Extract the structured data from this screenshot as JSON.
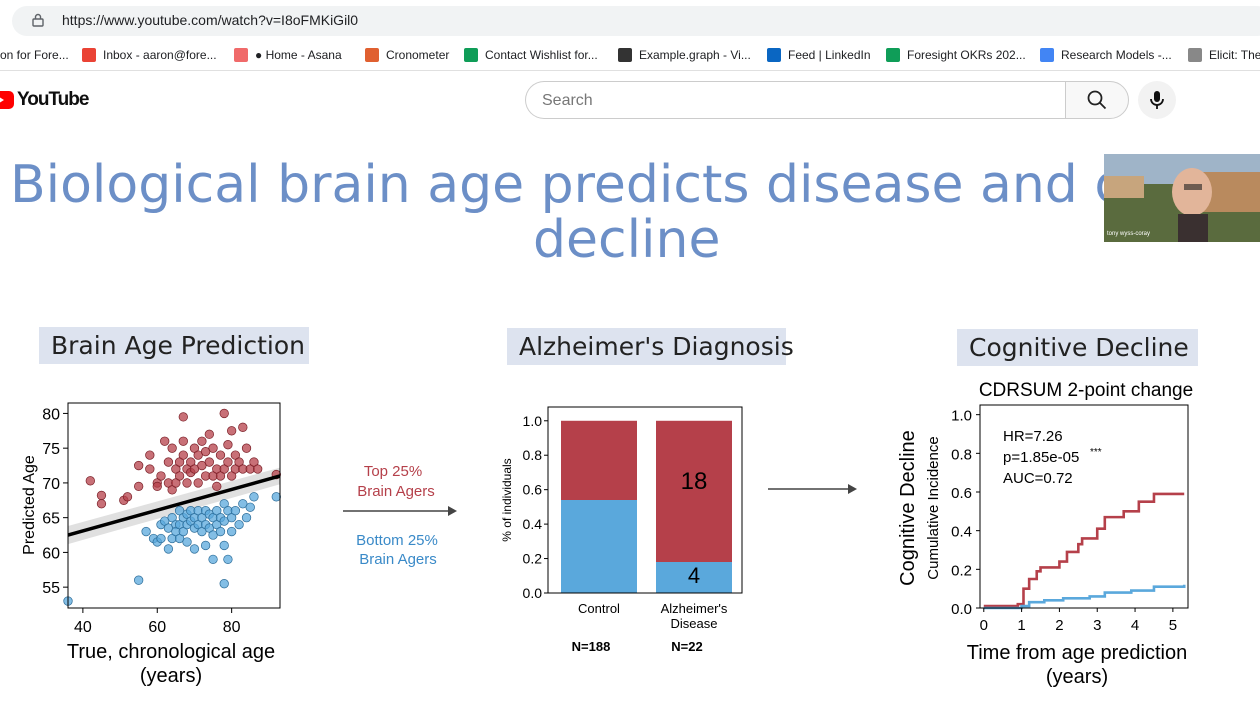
{
  "browser": {
    "url": "https://www.youtube.com/watch?v=I8oFMKiGil0",
    "bookmarks": [
      {
        "label": "on for Fore...",
        "color": "#5b8def"
      },
      {
        "label": "Inbox - aaron@fore...",
        "color": "#ea4335",
        "icon": "gmail-icon"
      },
      {
        "label": "● Home - Asana",
        "color": "#f06a6a",
        "icon": "asana-icon"
      },
      {
        "label": "Cronometer",
        "color": "#e06030",
        "icon": "cronometer-icon"
      },
      {
        "label": "Contact Wishlist for...",
        "color": "#0f9d58",
        "icon": "sheets-icon"
      },
      {
        "label": "Example.graph - Vi...",
        "color": "#333333",
        "icon": "graph-icon"
      },
      {
        "label": "Feed | LinkedIn",
        "color": "#0a66c2",
        "icon": "linkedin-icon"
      },
      {
        "label": "Foresight OKRs 202...",
        "color": "#0f9d58",
        "icon": "sheets-icon"
      },
      {
        "label": "Research Models -...",
        "color": "#4285f4",
        "icon": "docs-icon"
      },
      {
        "label": "Elicit: The",
        "color": "#888888",
        "icon": "elicit-icon"
      }
    ]
  },
  "youtube": {
    "brand": "YouTube",
    "search_placeholder": "Search"
  },
  "slide": {
    "title_line1": "Biological brain age predicts disease and cog",
    "title_line2": "decline",
    "webcam_name": "tony wyss-coray",
    "panel1": {
      "header": "Brain Age Prediction",
      "xlabel": "True, chronological age",
      "xlabel2": "(years)",
      "ylabel": "Predicted Age"
    },
    "middle": {
      "top_label1": "Top 25%",
      "top_label2": "Brain Agers",
      "bottom_label1": "Bottom 25%",
      "bottom_label2": "Brain Agers"
    },
    "panel2": {
      "header": "Alzheimer's Diagnosis",
      "ylabel": "% of individuals",
      "cat1": "Control",
      "cat2a": "Alzheimer's",
      "cat2b": "Disease",
      "n1": "N=188",
      "n2": "N=22",
      "val_red": "18",
      "val_blue": "4"
    },
    "panel3": {
      "header": "Cognitive Decline",
      "subtitle": "CDRSUM 2-point change",
      "ylabel_outer": "Cognitive Decline",
      "ylabel_inner": "Cumulative Incidence",
      "hr": "HR=7.26",
      "p": "p=1.85e-05",
      "stars": "***",
      "auc": "AUC=0.72",
      "xlabel": "Time from age prediction",
      "xlabel2": "(years)"
    }
  },
  "colors": {
    "red": "#b5404a",
    "blue": "#5aa8dc",
    "title": "#6c8fc7"
  },
  "chart_data": [
    {
      "type": "scatter",
      "title": "Brain Age Prediction",
      "xlabel": "True, chronological age (years)",
      "ylabel": "Predicted Age",
      "xticks": [
        40,
        60,
        80
      ],
      "yticks": [
        55,
        60,
        65,
        70,
        75,
        80
      ],
      "xlim": [
        36,
        93
      ],
      "ylim": [
        52,
        81.5
      ],
      "regression_line": {
        "x": [
          36,
          93
        ],
        "y": [
          62.5,
          71
        ]
      },
      "series": [
        {
          "name": "Top 25% Brain Agers",
          "color": "#b5404a",
          "points": [
            [
              42,
              70.3
            ],
            [
              45,
              68.2
            ],
            [
              45,
              67
            ],
            [
              51,
              67.5
            ],
            [
              52,
              68
            ],
            [
              55,
              69.5
            ],
            [
              55,
              72.5
            ],
            [
              58,
              72
            ],
            [
              58,
              74
            ],
            [
              60,
              70
            ],
            [
              60,
              69.5
            ],
            [
              61,
              71
            ],
            [
              62,
              76
            ],
            [
              63,
              73
            ],
            [
              63,
              70
            ],
            [
              64,
              75
            ],
            [
              64,
              69
            ],
            [
              65,
              72
            ],
            [
              65,
              70
            ],
            [
              66,
              73
            ],
            [
              66,
              71
            ],
            [
              67,
              79.5
            ],
            [
              67,
              76
            ],
            [
              67,
              74
            ],
            [
              68,
              72
            ],
            [
              68,
              70
            ],
            [
              69,
              73
            ],
            [
              69,
              71.5
            ],
            [
              70,
              75
            ],
            [
              70,
              72
            ],
            [
              71,
              74
            ],
            [
              71,
              70
            ],
            [
              72,
              76
            ],
            [
              72,
              72.5
            ],
            [
              73,
              74.5
            ],
            [
              73,
              71
            ],
            [
              74,
              77
            ],
            [
              74,
              73
            ],
            [
              75,
              71
            ],
            [
              75,
              75
            ],
            [
              76,
              72
            ],
            [
              76,
              69.5
            ],
            [
              77,
              74
            ],
            [
              77,
              71
            ],
            [
              78,
              80
            ],
            [
              78,
              72
            ],
            [
              79,
              75.5
            ],
            [
              79,
              73
            ],
            [
              80,
              77.5
            ],
            [
              80,
              71
            ],
            [
              81,
              74
            ],
            [
              81,
              72
            ],
            [
              82,
              73
            ],
            [
              83,
              78
            ],
            [
              83,
              72
            ],
            [
              84,
              75
            ],
            [
              85,
              72
            ],
            [
              86,
              73
            ],
            [
              87,
              72
            ],
            [
              92,
              71.2
            ]
          ]
        },
        {
          "name": "Bottom 25% Brain Agers",
          "color": "#5aa8dc",
          "points": [
            [
              36,
              53
            ],
            [
              55,
              56
            ],
            [
              57,
              63
            ],
            [
              59,
              62
            ],
            [
              60,
              61.5
            ],
            [
              61,
              64
            ],
            [
              61,
              62
            ],
            [
              62,
              64.5
            ],
            [
              63,
              63.5
            ],
            [
              63,
              60.5
            ],
            [
              64,
              65
            ],
            [
              64,
              62
            ],
            [
              65,
              64
            ],
            [
              65,
              63
            ],
            [
              66,
              66
            ],
            [
              66,
              64
            ],
            [
              66,
              62
            ],
            [
              67,
              65
            ],
            [
              67,
              63
            ],
            [
              68,
              65.5
            ],
            [
              68,
              64
            ],
            [
              68,
              61.5
            ],
            [
              69,
              66
            ],
            [
              69,
              64.5
            ],
            [
              70,
              65
            ],
            [
              70,
              63.5
            ],
            [
              70,
              60.5
            ],
            [
              71,
              66
            ],
            [
              71,
              64
            ],
            [
              72,
              65
            ],
            [
              72,
              63
            ],
            [
              73,
              66
            ],
            [
              73,
              64
            ],
            [
              73,
              61
            ],
            [
              74,
              65.5
            ],
            [
              74,
              63.5
            ],
            [
              75,
              65
            ],
            [
              75,
              62.5
            ],
            [
              75,
              59
            ],
            [
              76,
              66
            ],
            [
              76,
              64
            ],
            [
              77,
              65
            ],
            [
              77,
              63
            ],
            [
              78,
              67
            ],
            [
              78,
              64.5
            ],
            [
              78,
              61
            ],
            [
              78,
              55.5
            ],
            [
              79,
              66
            ],
            [
              79,
              59
            ],
            [
              80,
              65
            ],
            [
              80,
              63
            ],
            [
              81,
              66
            ],
            [
              82,
              64
            ],
            [
              83,
              67
            ],
            [
              84,
              65
            ],
            [
              85,
              66.5
            ],
            [
              86,
              68
            ],
            [
              92,
              68
            ]
          ]
        }
      ]
    },
    {
      "type": "bar",
      "title": "Alzheimer's Diagnosis",
      "categories": [
        "Control",
        "Alzheimer's Disease"
      ],
      "ylabel": "% of individuals",
      "ylim": [
        0,
        1.0
      ],
      "yticks": [
        0.0,
        0.2,
        0.4,
        0.6,
        0.8,
        1.0
      ],
      "stacked": true,
      "series": [
        {
          "name": "Bottom 25% Brain Agers",
          "color": "#5aa8dc",
          "values": [
            0.54,
            0.18
          ]
        },
        {
          "name": "Top 25% Brain Agers",
          "color": "#b5404a",
          "values": [
            0.46,
            0.82
          ]
        }
      ],
      "counts": {
        "Alzheimer's Disease": {
          "Top 25% Brain Agers": 18,
          "Bottom 25% Brain Agers": 4
        }
      },
      "n": [
        "N=188",
        "N=22"
      ]
    },
    {
      "type": "line",
      "title": "CDRSUM 2-point change",
      "xlabel": "Time from age prediction (years)",
      "ylabel": "Cumulative Incidence",
      "xlim": [
        -0.1,
        5.4
      ],
      "ylim": [
        0,
        1.05
      ],
      "xticks": [
        0,
        1,
        2,
        3,
        4,
        5
      ],
      "yticks": [
        0.0,
        0.2,
        0.4,
        0.6,
        0.8,
        1.0
      ],
      "step": true,
      "series": [
        {
          "name": "Top 25% Brain Agers",
          "color": "#b5404a",
          "x": [
            0,
            0.9,
            1.05,
            1.2,
            1.4,
            1.5,
            2.0,
            2.2,
            2.5,
            2.6,
            3.0,
            3.2,
            3.7,
            4.1,
            4.5,
            5.3
          ],
          "y": [
            0.01,
            0.02,
            0.1,
            0.15,
            0.19,
            0.21,
            0.24,
            0.29,
            0.33,
            0.36,
            0.41,
            0.47,
            0.5,
            0.55,
            0.59,
            0.59
          ]
        },
        {
          "name": "Bottom 25% Brain Agers",
          "color": "#5aa8dc",
          "x": [
            0,
            1.0,
            1.2,
            1.6,
            2.1,
            2.8,
            3.2,
            3.9,
            4.5,
            5.3
          ],
          "y": [
            0.0,
            0.01,
            0.03,
            0.04,
            0.05,
            0.06,
            0.08,
            0.09,
            0.11,
            0.12
          ]
        }
      ]
    }
  ]
}
